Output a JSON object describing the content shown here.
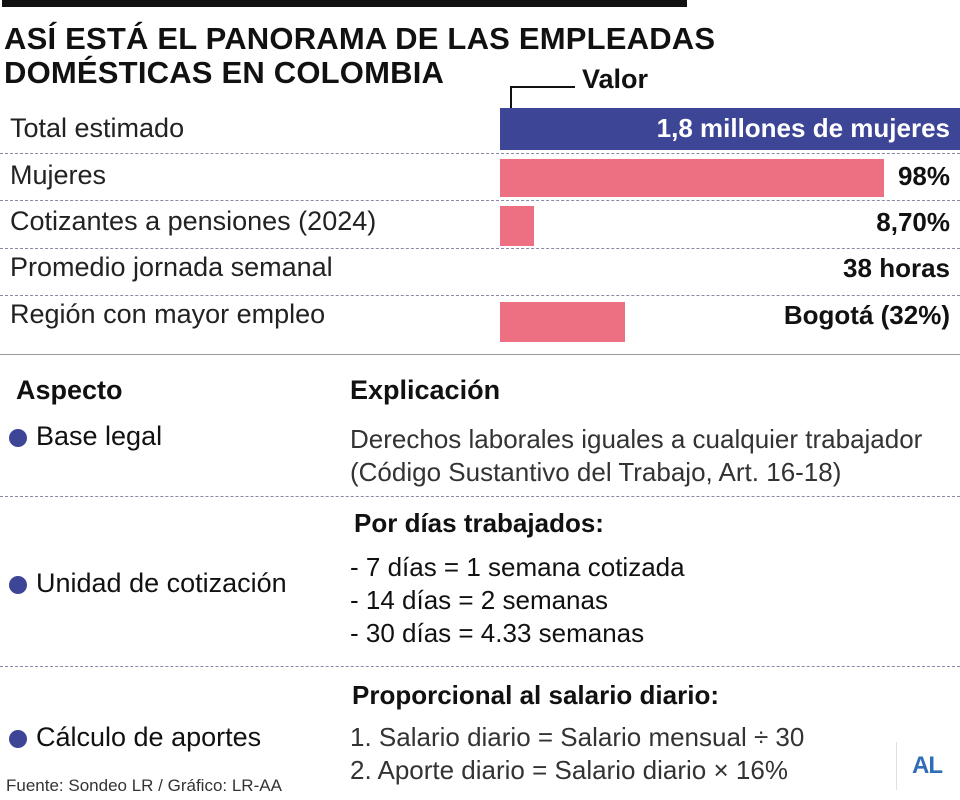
{
  "title": {
    "line1": "ASÍ ESTÁ EL PANORAMA DE LAS EMPLEADAS",
    "line2": "DOMÉSTICAS EN COLOMBIA"
  },
  "valor_label": "Valor",
  "rows": [
    {
      "label": "Total estimado",
      "value": "1,8 millones de mujeres"
    },
    {
      "label": "Mujeres",
      "value": "98%",
      "bar_fraction": 0.98
    },
    {
      "label": "Cotizantes a pensiones (2024)",
      "value": "8,70%",
      "bar_fraction": 0.087
    },
    {
      "label": "Promedio jornada semanal",
      "value": "38 horas"
    },
    {
      "label": "Región con mayor empleo",
      "value": "Bogotá (32%)",
      "bar_fraction": 0.32
    }
  ],
  "colors": {
    "bar_primary": "#3d4596",
    "bar_accent": "#ec6f82",
    "bullet": "#3d4596",
    "logo": "#2f6db6"
  },
  "table": {
    "header_aspect": "Aspecto",
    "header_explanation": "Explicación",
    "items": [
      {
        "aspect": "Base legal",
        "lines": [
          "Derechos laborales iguales a cualquier trabajador",
          "(Código Sustantivo del Trabajo, Art. 16-18)"
        ]
      },
      {
        "aspect": "Unidad de cotización",
        "heading": "Por días trabajados:",
        "lines": [
          "- 7 días = 1 semana cotizada",
          "- 14 días = 2 semanas",
          "- 30 días = 4.33 semanas"
        ]
      },
      {
        "aspect": "Cálculo de aportes",
        "heading": "Proporcional al salario diario:",
        "lines": [
          "1. Salario diario = Salario mensual ÷ 30",
          "2. Aporte diario = Salario diario × 16%"
        ]
      }
    ]
  },
  "source": "Fuente: Sondeo LR / Gráfico: LR-AA",
  "logo": "AL"
}
